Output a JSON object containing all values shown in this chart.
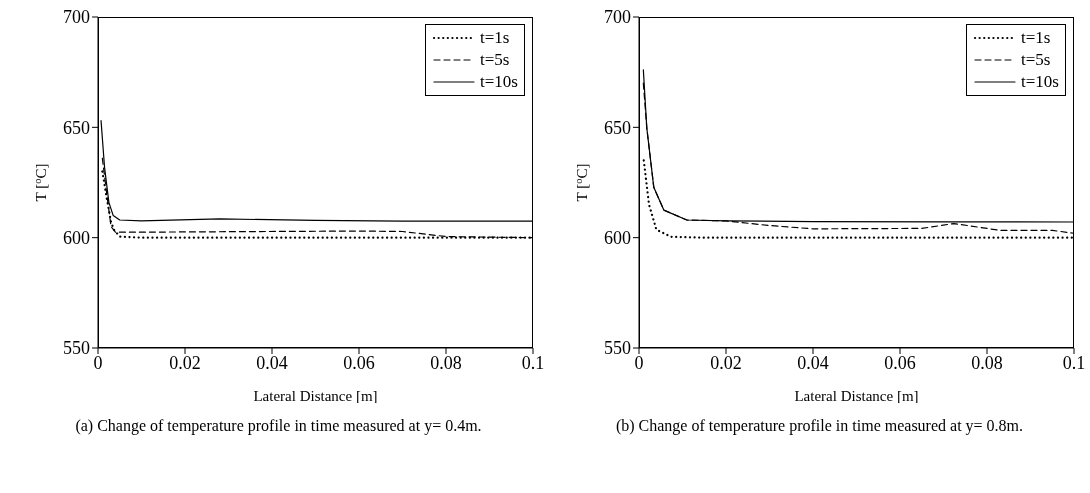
{
  "chart_data": [
    {
      "type": "line",
      "xlabel": "Lateral Distance [m]",
      "ylabel": "T [$^{o}$C]",
      "xlim": [
        0,
        0.1
      ],
      "ylim": [
        550,
        700
      ],
      "xticks": [
        0,
        0.02,
        0.04,
        0.06,
        0.08,
        0.1
      ],
      "yticks": [
        550,
        600,
        650,
        700
      ],
      "legend": "top right",
      "marker": "none",
      "annotations": [
        "(a) Change of temperature profile in time measured at y= 0.4m."
      ],
      "series": [
        {
          "name": "t=1s",
          "color": "#000000",
          "line_style": "dotted",
          "x": [
            0.001,
            0.002,
            0.003,
            0.0037,
            0.005,
            0.01,
            0.03,
            0.06,
            0.08,
            0.1
          ],
          "values": [
            630,
            618,
            607,
            603.5,
            600.5,
            600,
            600,
            600,
            600,
            600
          ]
        },
        {
          "name": "t=5s",
          "color": "#000000",
          "line_style": "dashed",
          "x": [
            0.001,
            0.002,
            0.003,
            0.004,
            0.01,
            0.03,
            0.06,
            0.07,
            0.08,
            0.1
          ],
          "values": [
            636,
            620,
            605,
            602.5,
            602.5,
            602.7,
            603,
            602.8,
            600.5,
            600
          ]
        },
        {
          "name": "t=10s",
          "color": "#000000",
          "line_style": "solid",
          "x": [
            0.0007,
            0.0015,
            0.0025,
            0.0035,
            0.005,
            0.01,
            0.028,
            0.05,
            0.07,
            0.1
          ],
          "values": [
            653,
            632,
            616,
            610,
            608,
            607.6,
            608.5,
            607.8,
            607.5,
            607.5
          ]
        }
      ]
    },
    {
      "type": "line",
      "xlabel": "Lateral Distance [m]",
      "ylabel": "T [$^{o}$C]",
      "xlim": [
        0,
        0.1
      ],
      "ylim": [
        550,
        700
      ],
      "xticks": [
        0,
        0.02,
        0.04,
        0.06,
        0.08,
        0.1
      ],
      "yticks": [
        550,
        600,
        650,
        700
      ],
      "legend": "top right",
      "marker": "none",
      "annotations": [
        "(b) Change of temperature profile in time measured at y= 0.8m."
      ],
      "series": [
        {
          "name": "t=1s",
          "color": "#000000",
          "line_style": "dotted",
          "x": [
            0.0011,
            0.0023,
            0.004,
            0.0074,
            0.015,
            0.04,
            0.07,
            0.1
          ],
          "values": [
            635,
            615,
            603.6,
            600.4,
            600,
            600,
            600,
            600
          ]
        },
        {
          "name": "t=5s",
          "color": "#000000",
          "line_style": "dashed",
          "x": [
            0.001,
            0.0018,
            0.0034,
            0.0057,
            0.011,
            0.02,
            0.03,
            0.04,
            0.065,
            0.0724,
            0.083,
            0.095,
            0.1
          ],
          "values": [
            670,
            649.6,
            622.8,
            612.5,
            608,
            607.6,
            605.5,
            604,
            604.2,
            606.4,
            603.3,
            603.3,
            602
          ]
        },
        {
          "name": "t=10s",
          "color": "#000000",
          "line_style": "solid",
          "x": [
            0.001,
            0.0018,
            0.0034,
            0.0057,
            0.011,
            0.02,
            0.04,
            0.07,
            0.1
          ],
          "values": [
            676,
            649.6,
            622.8,
            612.5,
            608,
            607.6,
            607.3,
            607.2,
            607.1
          ]
        }
      ]
    }
  ]
}
